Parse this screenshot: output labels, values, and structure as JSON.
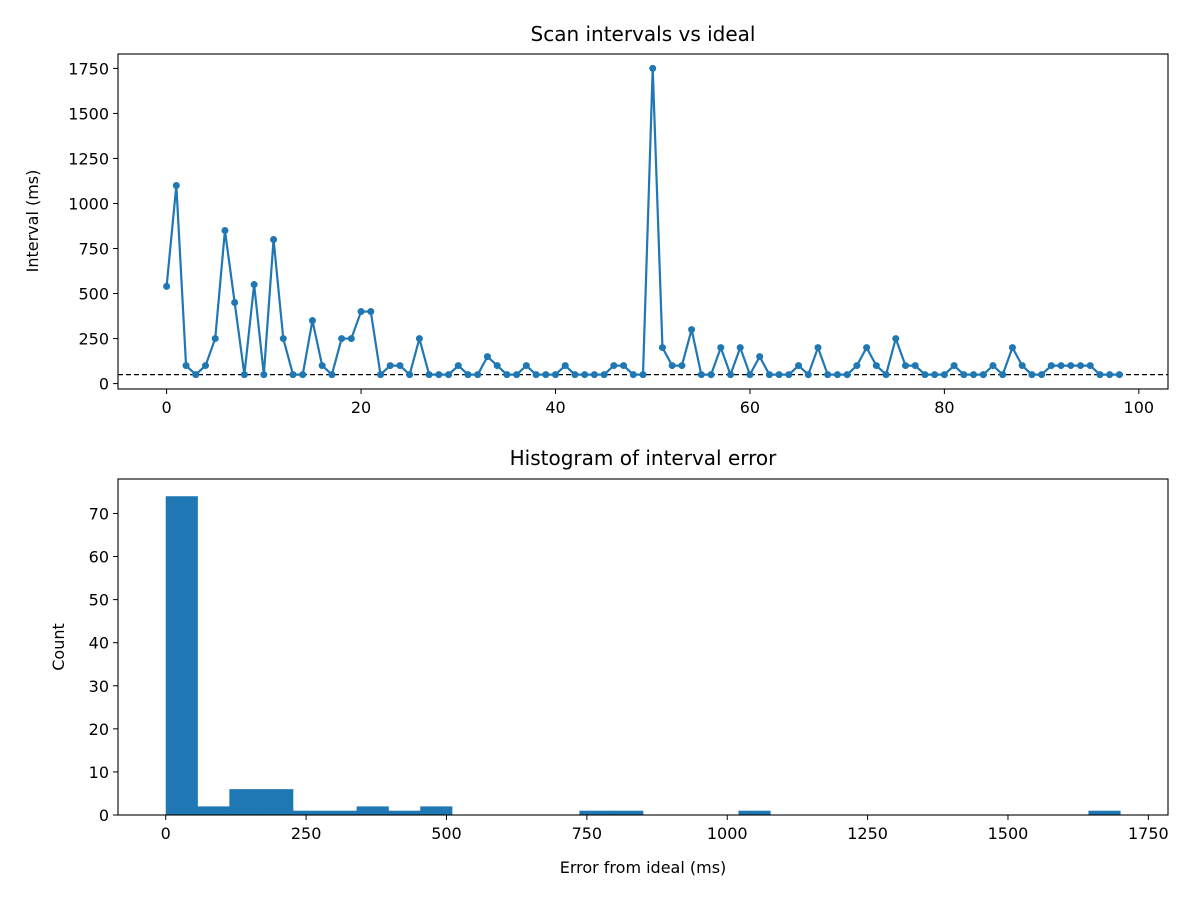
{
  "chart_data": [
    {
      "type": "line",
      "title": "Scan intervals vs ideal",
      "xlabel": "",
      "ylabel": "Interval (ms)",
      "xlim": [
        -5,
        103
      ],
      "ylim": [
        -30,
        1830
      ],
      "xticks": [
        0,
        20,
        40,
        60,
        80,
        100
      ],
      "yticks": [
        0,
        250,
        500,
        750,
        1000,
        1250,
        1500,
        1750
      ],
      "grid": false,
      "reference_line": {
        "y": 50,
        "style": "dashed",
        "color": "#000000"
      },
      "series": [
        {
          "color": "#1f77b4",
          "x": [
            0,
            1,
            2,
            3,
            4,
            5,
            6,
            7,
            8,
            9,
            10,
            11,
            12,
            13,
            14,
            15,
            16,
            17,
            18,
            19,
            20,
            21,
            22,
            23,
            24,
            25,
            26,
            27,
            28,
            29,
            30,
            31,
            32,
            33,
            34,
            35,
            36,
            37,
            38,
            39,
            40,
            41,
            42,
            43,
            44,
            45,
            46,
            47,
            48,
            49,
            50,
            51,
            52,
            53,
            54,
            55,
            56,
            57,
            58,
            59,
            60,
            61,
            62,
            63,
            64,
            65,
            66,
            67,
            68,
            69,
            70,
            71,
            72,
            73,
            74,
            75,
            76,
            77,
            78,
            79,
            80,
            81,
            82,
            83,
            84,
            85,
            86,
            87,
            88,
            89,
            90,
            91,
            92,
            93,
            94,
            95,
            96,
            97,
            98
          ],
          "y": [
            540,
            1100,
            100,
            50,
            100,
            250,
            850,
            450,
            50,
            550,
            50,
            800,
            250,
            50,
            50,
            350,
            100,
            50,
            250,
            250,
            400,
            400,
            50,
            100,
            100,
            50,
            250,
            50,
            50,
            50,
            100,
            50,
            50,
            150,
            100,
            50,
            50,
            100,
            50,
            50,
            50,
            100,
            50,
            50,
            50,
            50,
            100,
            100,
            50,
            50,
            1750,
            200,
            100,
            100,
            300,
            50,
            50,
            200,
            50,
            200,
            50,
            150,
            50,
            50,
            50,
            100,
            50,
            200,
            50,
            50,
            50,
            100,
            200,
            100,
            50,
            250,
            100,
            100,
            50,
            50,
            50,
            100,
            50,
            50,
            50,
            100,
            50,
            200,
            100,
            50,
            50,
            100,
            100,
            100,
            100,
            100,
            50,
            50,
            50
          ]
        }
      ]
    },
    {
      "type": "bar",
      "title": "Histogram of interval error",
      "xlabel": "Error from ideal (ms)",
      "ylabel": "Count",
      "xlim": [
        -85,
        1785
      ],
      "ylim": [
        0,
        78
      ],
      "xticks": [
        0,
        250,
        500,
        750,
        1000,
        1250,
        1500,
        1750
      ],
      "yticks": [
        0,
        10,
        20,
        30,
        40,
        50,
        60,
        70
      ],
      "grid": false,
      "color": "#1f77b4",
      "bins": [
        {
          "x0": 0,
          "x1": 56.7,
          "count": 74
        },
        {
          "x0": 56.7,
          "x1": 113.3,
          "count": 2
        },
        {
          "x0": 113.3,
          "x1": 170,
          "count": 6
        },
        {
          "x0": 170,
          "x1": 226.7,
          "count": 6
        },
        {
          "x0": 226.7,
          "x1": 283.3,
          "count": 1
        },
        {
          "x0": 283.3,
          "x1": 340,
          "count": 1
        },
        {
          "x0": 340,
          "x1": 396.7,
          "count": 2
        },
        {
          "x0": 396.7,
          "x1": 453.3,
          "count": 1
        },
        {
          "x0": 453.3,
          "x1": 510,
          "count": 2
        },
        {
          "x0": 510,
          "x1": 566.7,
          "count": 0
        },
        {
          "x0": 566.7,
          "x1": 623.3,
          "count": 0
        },
        {
          "x0": 623.3,
          "x1": 680,
          "count": 0
        },
        {
          "x0": 680,
          "x1": 736.7,
          "count": 0
        },
        {
          "x0": 736.7,
          "x1": 793.3,
          "count": 1
        },
        {
          "x0": 793.3,
          "x1": 850,
          "count": 1
        },
        {
          "x0": 850,
          "x1": 906.7,
          "count": 0
        },
        {
          "x0": 906.7,
          "x1": 963.3,
          "count": 0
        },
        {
          "x0": 963.3,
          "x1": 1020,
          "count": 0
        },
        {
          "x0": 1020,
          "x1": 1076.7,
          "count": 1
        },
        {
          "x0": 1076.7,
          "x1": 1133.3,
          "count": 0
        },
        {
          "x0": 1133.3,
          "x1": 1190,
          "count": 0
        },
        {
          "x0": 1190,
          "x1": 1246.7,
          "count": 0
        },
        {
          "x0": 1246.7,
          "x1": 1303.3,
          "count": 0
        },
        {
          "x0": 1303.3,
          "x1": 1360,
          "count": 0
        },
        {
          "x0": 1360,
          "x1": 1416.7,
          "count": 0
        },
        {
          "x0": 1416.7,
          "x1": 1473.3,
          "count": 0
        },
        {
          "x0": 1473.3,
          "x1": 1530,
          "count": 0
        },
        {
          "x0": 1530,
          "x1": 1586.7,
          "count": 0
        },
        {
          "x0": 1586.7,
          "x1": 1643.3,
          "count": 0
        },
        {
          "x0": 1643.3,
          "x1": 1700,
          "count": 1
        }
      ]
    }
  ]
}
